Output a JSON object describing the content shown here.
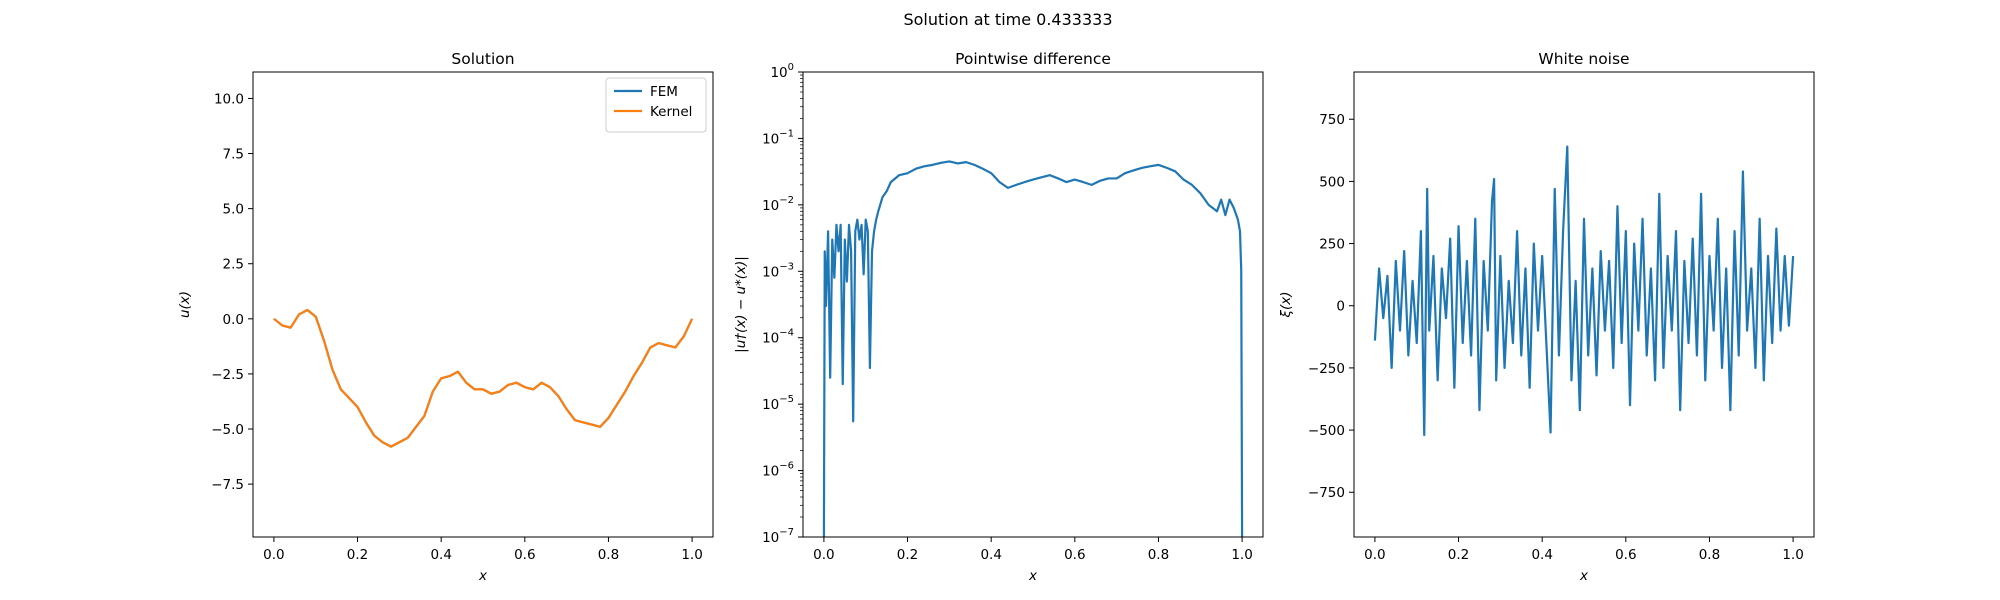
{
  "figure": {
    "suptitle": "Solution at time 0.433333"
  },
  "chart_data": [
    {
      "type": "line",
      "title": "Solution",
      "xlabel": "x",
      "ylabel": "u(x)",
      "xlim": [
        -0.05,
        1.05
      ],
      "ylim": [
        -9.9,
        11.2
      ],
      "xticks": [
        0.0,
        0.2,
        0.4,
        0.6,
        0.8,
        1.0
      ],
      "xtick_labels": [
        "0.0",
        "0.2",
        "0.4",
        "0.6",
        "0.8",
        "1.0"
      ],
      "yticks": [
        -7.5,
        -5.0,
        -2.5,
        0.0,
        2.5,
        5.0,
        7.5,
        10.0
      ],
      "ytick_labels": [
        "−7.5",
        "−5.0",
        "−2.5",
        "0.0",
        "2.5",
        "5.0",
        "7.5",
        "10.0"
      ],
      "legend": {
        "position": "top-right"
      },
      "series": [
        {
          "name": "FEM",
          "color": "#1f77b4",
          "x": [
            0.0,
            0.02,
            0.04,
            0.05,
            0.06,
            0.08,
            0.1,
            0.12,
            0.14,
            0.16,
            0.18,
            0.2,
            0.22,
            0.24,
            0.26,
            0.28,
            0.3,
            0.32,
            0.34,
            0.36,
            0.38,
            0.4,
            0.42,
            0.44,
            0.46,
            0.48,
            0.5,
            0.52,
            0.54,
            0.56,
            0.58,
            0.6,
            0.62,
            0.64,
            0.66,
            0.68,
            0.7,
            0.72,
            0.74,
            0.76,
            0.78,
            0.8,
            0.82,
            0.84,
            0.86,
            0.88,
            0.9,
            0.92,
            0.94,
            0.96,
            0.98,
            1.0
          ],
          "y": [
            0.0,
            -0.3,
            -0.4,
            -0.1,
            0.2,
            0.4,
            0.1,
            -1.0,
            -2.3,
            -3.2,
            -3.6,
            -4.0,
            -4.7,
            -5.3,
            -5.6,
            -5.8,
            -5.6,
            -5.4,
            -4.9,
            -4.4,
            -3.3,
            -2.7,
            -2.6,
            -2.4,
            -2.9,
            -3.2,
            -3.2,
            -3.4,
            -3.3,
            -3.0,
            -2.9,
            -3.1,
            -3.2,
            -2.9,
            -3.1,
            -3.5,
            -4.1,
            -4.6,
            -4.7,
            -4.8,
            -4.9,
            -4.5,
            -3.9,
            -3.3,
            -2.6,
            -2.0,
            -1.3,
            -1.1,
            -1.2,
            -1.3,
            -0.8,
            0.0
          ]
        },
        {
          "name": "Kernel",
          "color": "#ff7f0e",
          "x": [
            0.0,
            0.02,
            0.04,
            0.05,
            0.06,
            0.08,
            0.1,
            0.12,
            0.14,
            0.16,
            0.18,
            0.2,
            0.22,
            0.24,
            0.26,
            0.28,
            0.3,
            0.32,
            0.34,
            0.36,
            0.38,
            0.4,
            0.42,
            0.44,
            0.46,
            0.48,
            0.5,
            0.52,
            0.54,
            0.56,
            0.58,
            0.6,
            0.62,
            0.64,
            0.66,
            0.68,
            0.7,
            0.72,
            0.74,
            0.76,
            0.78,
            0.8,
            0.82,
            0.84,
            0.86,
            0.88,
            0.9,
            0.92,
            0.94,
            0.96,
            0.98,
            1.0
          ],
          "y": [
            0.0,
            -0.3,
            -0.4,
            -0.1,
            0.2,
            0.4,
            0.1,
            -1.0,
            -2.3,
            -3.2,
            -3.6,
            -4.0,
            -4.7,
            -5.3,
            -5.6,
            -5.8,
            -5.6,
            -5.4,
            -4.9,
            -4.4,
            -3.3,
            -2.7,
            -2.6,
            -2.4,
            -2.9,
            -3.2,
            -3.2,
            -3.4,
            -3.3,
            -3.0,
            -2.9,
            -3.1,
            -3.2,
            -2.9,
            -3.1,
            -3.5,
            -4.1,
            -4.6,
            -4.7,
            -4.8,
            -4.9,
            -4.5,
            -3.9,
            -3.3,
            -2.6,
            -2.0,
            -1.3,
            -1.1,
            -1.2,
            -1.3,
            -0.8,
            0.0
          ]
        }
      ]
    },
    {
      "type": "line",
      "title": "Pointwise difference",
      "xlabel": "x",
      "ylabel": "|u†(x) − u*(x)|",
      "yscale": "log",
      "xlim": [
        -0.05,
        1.05
      ],
      "ylim": [
        1e-07,
        1
      ],
      "xticks": [
        0.0,
        0.2,
        0.4,
        0.6,
        0.8,
        1.0
      ],
      "xtick_labels": [
        "0.0",
        "0.2",
        "0.4",
        "0.6",
        "0.8",
        "1.0"
      ],
      "yticks": [
        1e-07,
        1e-06,
        1e-05,
        0.0001,
        0.001,
        0.01,
        0.1,
        1
      ],
      "ytick_labels": [
        [
          "10",
          "−7"
        ],
        [
          "10",
          "−6"
        ],
        [
          "10",
          "−5"
        ],
        [
          "10",
          "−4"
        ],
        [
          "10",
          "−3"
        ],
        [
          "10",
          "−2"
        ],
        [
          "10",
          "−1"
        ],
        [
          "10",
          "0"
        ]
      ],
      "series": [
        {
          "color": "#1f77b4",
          "x": [
            0.0,
            0.002,
            0.005,
            0.01,
            0.015,
            0.02,
            0.025,
            0.03,
            0.035,
            0.04,
            0.045,
            0.05,
            0.055,
            0.06,
            0.065,
            0.07,
            0.075,
            0.08,
            0.085,
            0.09,
            0.095,
            0.1,
            0.105,
            0.11,
            0.115,
            0.12,
            0.125,
            0.13,
            0.14,
            0.15,
            0.16,
            0.18,
            0.2,
            0.22,
            0.24,
            0.26,
            0.28,
            0.3,
            0.32,
            0.34,
            0.36,
            0.38,
            0.4,
            0.42,
            0.44,
            0.46,
            0.48,
            0.5,
            0.52,
            0.54,
            0.56,
            0.58,
            0.6,
            0.62,
            0.64,
            0.66,
            0.68,
            0.7,
            0.72,
            0.74,
            0.76,
            0.78,
            0.8,
            0.82,
            0.84,
            0.86,
            0.88,
            0.9,
            0.92,
            0.94,
            0.95,
            0.96,
            0.97,
            0.98,
            0.99,
            0.995,
            0.998,
            1.0
          ],
          "y": [
            1e-07,
            0.002,
            0.0003,
            0.004,
            2.5e-05,
            0.003,
            0.0008,
            0.005,
            0.002,
            0.005,
            2e-05,
            0.003,
            0.0007,
            0.005,
            0.002,
            5.5e-06,
            0.004,
            0.006,
            0.003,
            0.005,
            0.0009,
            0.006,
            0.004,
            3.5e-05,
            0.002,
            0.004,
            0.006,
            0.008,
            0.013,
            0.016,
            0.022,
            0.028,
            0.03,
            0.035,
            0.038,
            0.04,
            0.043,
            0.045,
            0.042,
            0.044,
            0.04,
            0.035,
            0.03,
            0.022,
            0.018,
            0.02,
            0.022,
            0.024,
            0.026,
            0.028,
            0.025,
            0.022,
            0.024,
            0.022,
            0.02,
            0.023,
            0.025,
            0.025,
            0.03,
            0.033,
            0.036,
            0.038,
            0.04,
            0.036,
            0.032,
            0.024,
            0.02,
            0.015,
            0.01,
            0.008,
            0.012,
            0.007,
            0.012,
            0.009,
            0.006,
            0.004,
            0.001,
            1e-07
          ]
        }
      ]
    },
    {
      "type": "line",
      "title": "White noise",
      "xlabel": "x",
      "ylabel": "ξ(x)",
      "xlim": [
        -0.05,
        1.05
      ],
      "ylim": [
        -930,
        940
      ],
      "xticks": [
        0.0,
        0.2,
        0.4,
        0.6,
        0.8,
        1.0
      ],
      "xtick_labels": [
        "0.0",
        "0.2",
        "0.4",
        "0.6",
        "0.8",
        "1.0"
      ],
      "yticks": [
        -750,
        -500,
        -250,
        0,
        250,
        500,
        750
      ],
      "ytick_labels": [
        "−750",
        "−500",
        "−250",
        "0",
        "250",
        "500",
        "750"
      ],
      "series": [
        {
          "color": "#1f77b4",
          "x": [
            0.0,
            0.01,
            0.02,
            0.03,
            0.04,
            0.05,
            0.06,
            0.07,
            0.08,
            0.09,
            0.1,
            0.11,
            0.118,
            0.125,
            0.13,
            0.14,
            0.15,
            0.16,
            0.17,
            0.18,
            0.19,
            0.2,
            0.21,
            0.22,
            0.23,
            0.24,
            0.25,
            0.26,
            0.27,
            0.28,
            0.285,
            0.29,
            0.3,
            0.31,
            0.32,
            0.33,
            0.34,
            0.35,
            0.36,
            0.37,
            0.38,
            0.39,
            0.4,
            0.41,
            0.42,
            0.43,
            0.44,
            0.45,
            0.46,
            0.47,
            0.48,
            0.49,
            0.5,
            0.51,
            0.52,
            0.53,
            0.54,
            0.55,
            0.56,
            0.57,
            0.58,
            0.59,
            0.6,
            0.61,
            0.62,
            0.63,
            0.64,
            0.65,
            0.66,
            0.67,
            0.68,
            0.69,
            0.7,
            0.71,
            0.72,
            0.73,
            0.74,
            0.75,
            0.76,
            0.77,
            0.78,
            0.79,
            0.8,
            0.81,
            0.82,
            0.83,
            0.84,
            0.85,
            0.86,
            0.87,
            0.88,
            0.89,
            0.9,
            0.91,
            0.92,
            0.93,
            0.94,
            0.95,
            0.96,
            0.97,
            0.98,
            0.99,
            1.0
          ],
          "y": [
            -140,
            150,
            -50,
            120,
            -250,
            180,
            -100,
            220,
            -200,
            100,
            -150,
            300,
            -520,
            470,
            -100,
            200,
            -300,
            150,
            -50,
            270,
            -330,
            320,
            -150,
            180,
            -200,
            350,
            -420,
            180,
            -100,
            420,
            510,
            -300,
            200,
            -250,
            100,
            -150,
            300,
            -200,
            150,
            -330,
            250,
            -100,
            200,
            -150,
            -510,
            470,
            -200,
            300,
            640,
            -300,
            100,
            -420,
            350,
            -200,
            150,
            -280,
            220,
            -100,
            180,
            -250,
            400,
            -150,
            300,
            -400,
            250,
            -100,
            350,
            -200,
            150,
            -300,
            450,
            -250,
            200,
            -100,
            300,
            -420,
            180,
            -150,
            270,
            -200,
            450,
            -300,
            200,
            -100,
            350,
            -250,
            150,
            -420,
            300,
            -200,
            540,
            -100,
            150,
            -250,
            350,
            -300,
            200,
            -150,
            310,
            -100,
            200,
            -80,
            200
          ]
        }
      ]
    }
  ]
}
